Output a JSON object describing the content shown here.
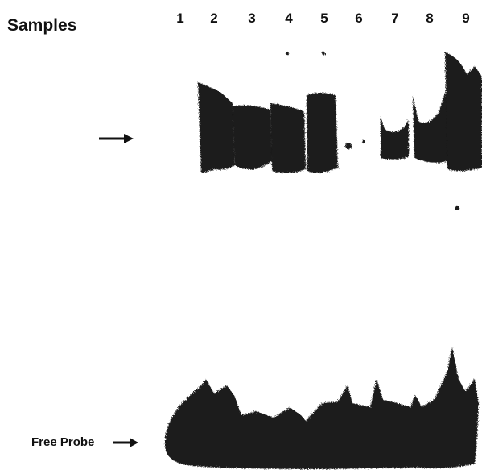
{
  "figure": {
    "samples_label": "Samples",
    "lanes": [
      "1",
      "2",
      "3",
      "4",
      "5",
      "6",
      "7",
      "8",
      "9"
    ],
    "free_probe_label": "Free Probe",
    "band_color": "#1a1a1a",
    "background": "#ffffff"
  }
}
